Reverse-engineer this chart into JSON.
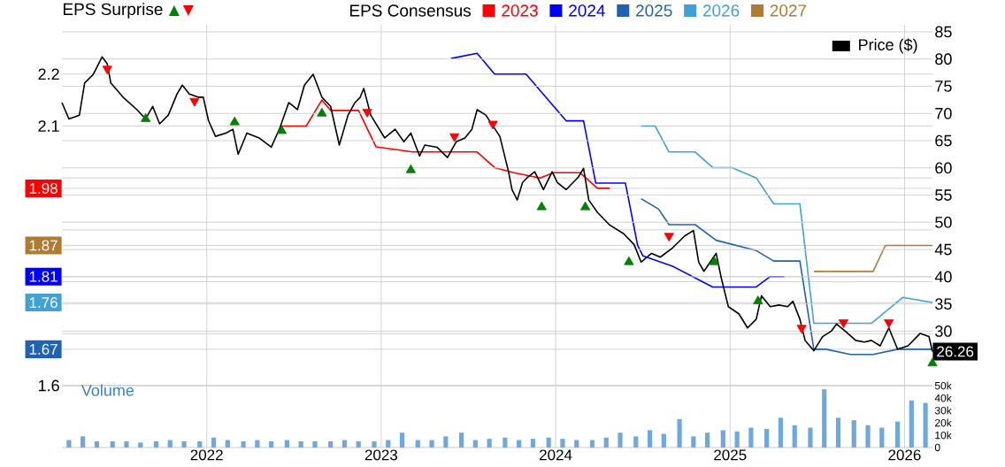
{
  "chart_data": [
    {
      "type": "line",
      "annotations": [
        "EPS Surprise"
      ],
      "legend_title": "EPS Consensus",
      "legend": "top",
      "grid": true,
      "tick_labels": "y",
      "xlim": [
        2021.17,
        2026.16
      ],
      "xticks": [
        2022,
        2023,
        2024,
        2025,
        2026
      ],
      "ylim": [
        1.6,
        2.295
      ],
      "yticks": [
        2.2,
        2.1,
        {
          "value": 2.0,
          "label": null
        },
        {
          "value": 1.98,
          "label": "1.98"
        },
        {
          "value": 1.9,
          "label": null
        },
        {
          "value": 1.87,
          "label": "1.87"
        },
        {
          "value": 1.81,
          "label": "1.81"
        },
        {
          "value": 1.8,
          "label": null
        },
        {
          "value": 1.76,
          "label": "1.76"
        },
        {
          "value": 1.7,
          "label": null
        },
        {
          "value": 1.67,
          "label": "1.67"
        },
        1.6
      ],
      "y2lim": [
        20,
        86.3
      ],
      "y2ticks": [
        30,
        35,
        40,
        45,
        50,
        55,
        60,
        65,
        70,
        75,
        80,
        85
      ],
      "series": [
        {
          "name": "Price ($)",
          "color": "#000000",
          "axis": "y2",
          "x": [
            2021.17,
            2021.21,
            2021.27,
            2021.3,
            2021.35,
            2021.4,
            2021.43,
            2021.45,
            2021.52,
            2021.6,
            2021.65,
            2021.69,
            2021.73,
            2021.78,
            2021.83,
            2021.86,
            2021.9,
            2021.95,
            2021.98,
            2022.01,
            2022.05,
            2022.11,
            2022.15,
            2022.18,
            2022.23,
            2022.3,
            2022.37,
            2022.42,
            2022.47,
            2022.52,
            2022.56,
            2022.61,
            2022.66,
            2022.71,
            2022.76,
            2022.81,
            2022.85,
            2022.88,
            2022.9,
            2022.94,
            2023.02,
            2023.08,
            2023.13,
            2023.17,
            2023.22,
            2023.25,
            2023.32,
            2023.38,
            2023.43,
            2023.48,
            2023.52,
            2023.55,
            2023.6,
            2023.68,
            2023.73,
            2023.75,
            2023.78,
            2023.81,
            2023.84,
            2023.88,
            2023.93,
            2023.98,
            2024.01,
            2024.06,
            2024.13,
            2024.16,
            2024.19,
            2024.24,
            2024.31,
            2024.39,
            2024.45,
            2024.49,
            2024.55,
            2024.6,
            2024.67,
            2024.74,
            2024.79,
            2024.82,
            2024.85,
            2024.92,
            2024.95,
            2024.99,
            2025.05,
            2025.1,
            2025.15,
            2025.18,
            2025.23,
            2025.28,
            2025.33,
            2025.36,
            2025.4,
            2025.43,
            2025.48,
            2025.53,
            2025.58,
            2025.61,
            2025.66,
            2025.72,
            2025.77,
            2025.81,
            2025.86,
            2025.91,
            2025.96,
            2026.02,
            2026.09,
            2026.14,
            2026.16
          ],
          "values": [
            72.0,
            69.0,
            69.7,
            75.6,
            77.2,
            80.4,
            79.1,
            75.6,
            73.0,
            70.7,
            69.0,
            71.3,
            68.1,
            69.7,
            73.6,
            75.2,
            73.6,
            73.0,
            73.0,
            68.7,
            65.8,
            66.4,
            67.1,
            62.5,
            66.4,
            65.5,
            63.8,
            67.4,
            72.0,
            70.7,
            75.2,
            77.2,
            73.0,
            71.3,
            64.2,
            69.7,
            72.0,
            73.0,
            74.6,
            69.7,
            65.5,
            67.1,
            64.8,
            66.4,
            62.2,
            64.2,
            63.8,
            61.9,
            64.8,
            65.5,
            67.1,
            70.7,
            69.7,
            65.8,
            59.3,
            56.0,
            54.1,
            57.3,
            58.3,
            59.3,
            56.0,
            59.3,
            57.3,
            56.0,
            58.3,
            59.9,
            54.1,
            51.8,
            49.5,
            47.9,
            45.9,
            42.7,
            44.3,
            43.6,
            45.3,
            47.5,
            48.5,
            42.7,
            41.0,
            44.3,
            39.7,
            34.5,
            33.2,
            30.6,
            32.2,
            36.5,
            34.5,
            34.8,
            34.5,
            35.5,
            32.2,
            28.3,
            26.4,
            29.0,
            30.0,
            31.3,
            30.0,
            28.3,
            28.0,
            28.3,
            27.3,
            30.6,
            26.7,
            27.3,
            29.6,
            29.0,
            26.26
          ],
          "value_labels": [
            null,
            null,
            null,
            null,
            null,
            null,
            null,
            null,
            null,
            null,
            null,
            null,
            null,
            null,
            null,
            null,
            null,
            null,
            null,
            null,
            null,
            null,
            null,
            null,
            null,
            null,
            null,
            null,
            null,
            null,
            null,
            null,
            null,
            null,
            null,
            null,
            null,
            null,
            null,
            null,
            null,
            null,
            null,
            null,
            null,
            null,
            null,
            null,
            null,
            null,
            null,
            null,
            null,
            null,
            null,
            null,
            null,
            null,
            null,
            null,
            null,
            null,
            null,
            null,
            null,
            null,
            null,
            null,
            null,
            null,
            null,
            null,
            null,
            null,
            null,
            null,
            null,
            null,
            null,
            null,
            null,
            null,
            null,
            null,
            null,
            null,
            null,
            null,
            null,
            null,
            null,
            null,
            null,
            null,
            null,
            null,
            null,
            null,
            null,
            null,
            null,
            null,
            null,
            null,
            null,
            null,
            "26.26"
          ]
        },
        {
          "name": "2023",
          "color": "#ff0000",
          "x": [
            2022.42,
            2022.57,
            2022.66,
            2022.71,
            2022.87,
            2022.97,
            2023.18,
            2023.55,
            2023.65,
            2023.76,
            2023.91,
            2023.99,
            2024.14,
            2024.24,
            2024.31
          ],
          "values": [
            2.1,
            2.1,
            2.15,
            2.13,
            2.13,
            2.06,
            2.05,
            2.05,
            2.02,
            2.01,
            2.0,
            2.01,
            2.01,
            1.98,
            1.98
          ]
        },
        {
          "name": "2024",
          "color": "#0000ff",
          "x": [
            2023.4,
            2023.55,
            2023.65,
            2023.83,
            2024.06,
            2024.16,
            2024.23,
            2024.4,
            2024.47,
            2024.5,
            2024.67,
            2024.9,
            2025.15,
            2025.23,
            2025.31
          ],
          "values": [
            2.23,
            2.24,
            2.2,
            2.2,
            2.11,
            2.11,
            1.99,
            1.99,
            1.87,
            1.85,
            1.83,
            1.79,
            1.79,
            1.81,
            1.81
          ]
        },
        {
          "name": "2025",
          "color": "#1f62b0",
          "x": [
            2024.49,
            2024.59,
            2024.65,
            2024.8,
            2024.92,
            2025.15,
            2025.25,
            2025.4,
            2025.48,
            2025.55,
            2025.69,
            2025.82,
            2025.96,
            2026.16
          ],
          "values": [
            1.96,
            1.94,
            1.91,
            1.91,
            1.88,
            1.86,
            1.84,
            1.84,
            1.67,
            1.67,
            1.66,
            1.66,
            1.67,
            1.67
          ]
        },
        {
          "name": "2026",
          "color": "#3fa2d2",
          "x": [
            2024.49,
            2024.57,
            2024.65,
            2024.8,
            2024.9,
            2025.01,
            2025.15,
            2025.25,
            2025.4,
            2025.48,
            2025.55,
            2025.81,
            2025.99,
            2026.16
          ],
          "values": [
            2.1,
            2.1,
            2.05,
            2.05,
            2.02,
            2.02,
            2.0,
            1.95,
            1.95,
            1.72,
            1.72,
            1.72,
            1.77,
            1.76
          ]
        },
        {
          "name": "2027",
          "color": "#b07a30",
          "x": [
            2025.48,
            2025.69,
            2025.82,
            2025.89,
            2026.16
          ],
          "values": [
            1.82,
            1.82,
            1.82,
            1.87,
            1.87
          ]
        },
        {
          "type": "scatter",
          "color": "#008000",
          "axis": "y2",
          "marker": "triangle",
          "x": [
            2021.65,
            2022.16,
            2022.43,
            2022.66,
            2023.17,
            2023.92,
            2024.17,
            2024.42,
            2024.91,
            2025.16,
            2026.16
          ],
          "values": [
            69.0,
            68.4,
            66.8,
            70.0,
            59.6,
            52.8,
            52.8,
            42.7,
            42.7,
            35.5,
            24.1
          ]
        },
        {
          "type": "scatter",
          "color": "#ff0000",
          "axis": "y2",
          "marker": "triangle down",
          "x": [
            2021.43,
            2021.93,
            2022.92,
            2023.42,
            2023.64,
            2024.65,
            2025.41,
            2025.65,
            2025.91
          ],
          "values": [
            78.2,
            72.3,
            70.3,
            65.8,
            68.1,
            47.5,
            30.6,
            31.6,
            31.6
          ]
        }
      ]
    },
    {
      "type": "bar",
      "title": "Volume",
      "grid": "x",
      "xlim": [
        2021.17,
        2026.16
      ],
      "xticks": [
        2022,
        2023,
        2024,
        2025,
        2026
      ],
      "y2lim": [
        0,
        50000
      ],
      "y2ticks": [
        0,
        {
          "value": 10000,
          "label": "10k"
        },
        {
          "value": 20000,
          "label": "20k"
        },
        {
          "value": 30000,
          "label": "30k"
        },
        {
          "value": 40000,
          "label": "40k"
        },
        {
          "value": 50000,
          "label": "50k"
        }
      ],
      "series": [
        {
          "color": "#6fa8dc",
          "axis": "y2",
          "x": [
            2021.21,
            2021.29,
            2021.37,
            2021.46,
            2021.54,
            2021.62,
            2021.71,
            2021.79,
            2021.87,
            2021.96,
            2022.04,
            2022.12,
            2022.21,
            2022.29,
            2022.37,
            2022.46,
            2022.54,
            2022.62,
            2022.71,
            2022.79,
            2022.87,
            2022.96,
            2023.04,
            2023.12,
            2023.21,
            2023.29,
            2023.37,
            2023.46,
            2023.54,
            2023.62,
            2023.71,
            2023.79,
            2023.87,
            2023.96,
            2024.04,
            2024.12,
            2024.21,
            2024.29,
            2024.37,
            2024.46,
            2024.54,
            2024.62,
            2024.71,
            2024.79,
            2024.87,
            2024.96,
            2025.04,
            2025.12,
            2025.21,
            2025.29,
            2025.37,
            2025.46,
            2025.54,
            2025.62,
            2025.71,
            2025.79,
            2025.87,
            2025.96,
            2026.04,
            2026.12
          ],
          "values": [
            6000,
            9000,
            5000,
            5000,
            5000,
            4000,
            5000,
            6000,
            5000,
            5000,
            8000,
            6000,
            5000,
            6000,
            5000,
            6000,
            5000,
            5000,
            5000,
            6000,
            5000,
            5000,
            6000,
            12000,
            6000,
            6000,
            9000,
            12000,
            6000,
            7000,
            8000,
            6000,
            7000,
            8000,
            7000,
            6000,
            6000,
            8000,
            12000,
            9000,
            14000,
            11000,
            23000,
            9000,
            12000,
            14000,
            13000,
            16000,
            15000,
            24000,
            18000,
            16000,
            47000,
            24000,
            22000,
            18000,
            16000,
            21000,
            38000,
            36000
          ]
        }
      ]
    }
  ]
}
